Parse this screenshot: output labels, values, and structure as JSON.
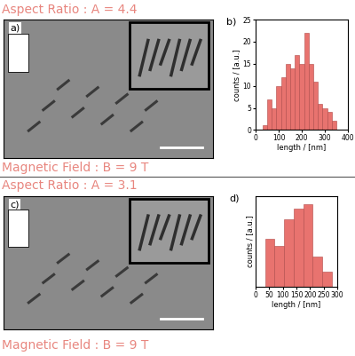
{
  "rows": [
    {
      "aspect_ratio": "Aspect Ratio : A = 4.4",
      "magnetic_field": "Magnetic Field : B = 9 T",
      "image_label": "a)"
    },
    {
      "aspect_ratio": "Aspect Ratio : A = 3.1",
      "magnetic_field": "Magnetic Field : B = 9 T",
      "image_label": "c)"
    }
  ],
  "chart_data": [
    {
      "type": "histogram",
      "annotation": "b)",
      "x_label": "length / [nm]",
      "y_label": "counts / [a.u.]",
      "bins": [
        30,
        50,
        70,
        90,
        110,
        130,
        150,
        170,
        190,
        210,
        230,
        250,
        270,
        290,
        310,
        330,
        350
      ],
      "counts": [
        1,
        7,
        5,
        10,
        12,
        15,
        14,
        17,
        15,
        22,
        15,
        11,
        6,
        5,
        4,
        2
      ],
      "color": "#e8736f",
      "xlim": [
        0,
        400
      ],
      "xticks": [
        0,
        100,
        200,
        300,
        400
      ],
      "ylim": [
        0,
        25
      ],
      "yticks": [
        0,
        5,
        10,
        15,
        20,
        25
      ]
    },
    {
      "type": "histogram",
      "annotation": "d)",
      "x_label": "length / [nm]",
      "y_label": "counts / [a.u.]",
      "bins": [
        35,
        70,
        105,
        140,
        175,
        210,
        245,
        280
      ],
      "counts": [
        22,
        19,
        31,
        36,
        38,
        14,
        7
      ],
      "color": "#e8736f",
      "xlim": [
        0,
        300
      ],
      "xticks": [
        0,
        50,
        100,
        150,
        200,
        250,
        300
      ],
      "ylim": [
        0,
        42
      ],
      "yticks": [],
      "tick_labels": "x"
    }
  ]
}
